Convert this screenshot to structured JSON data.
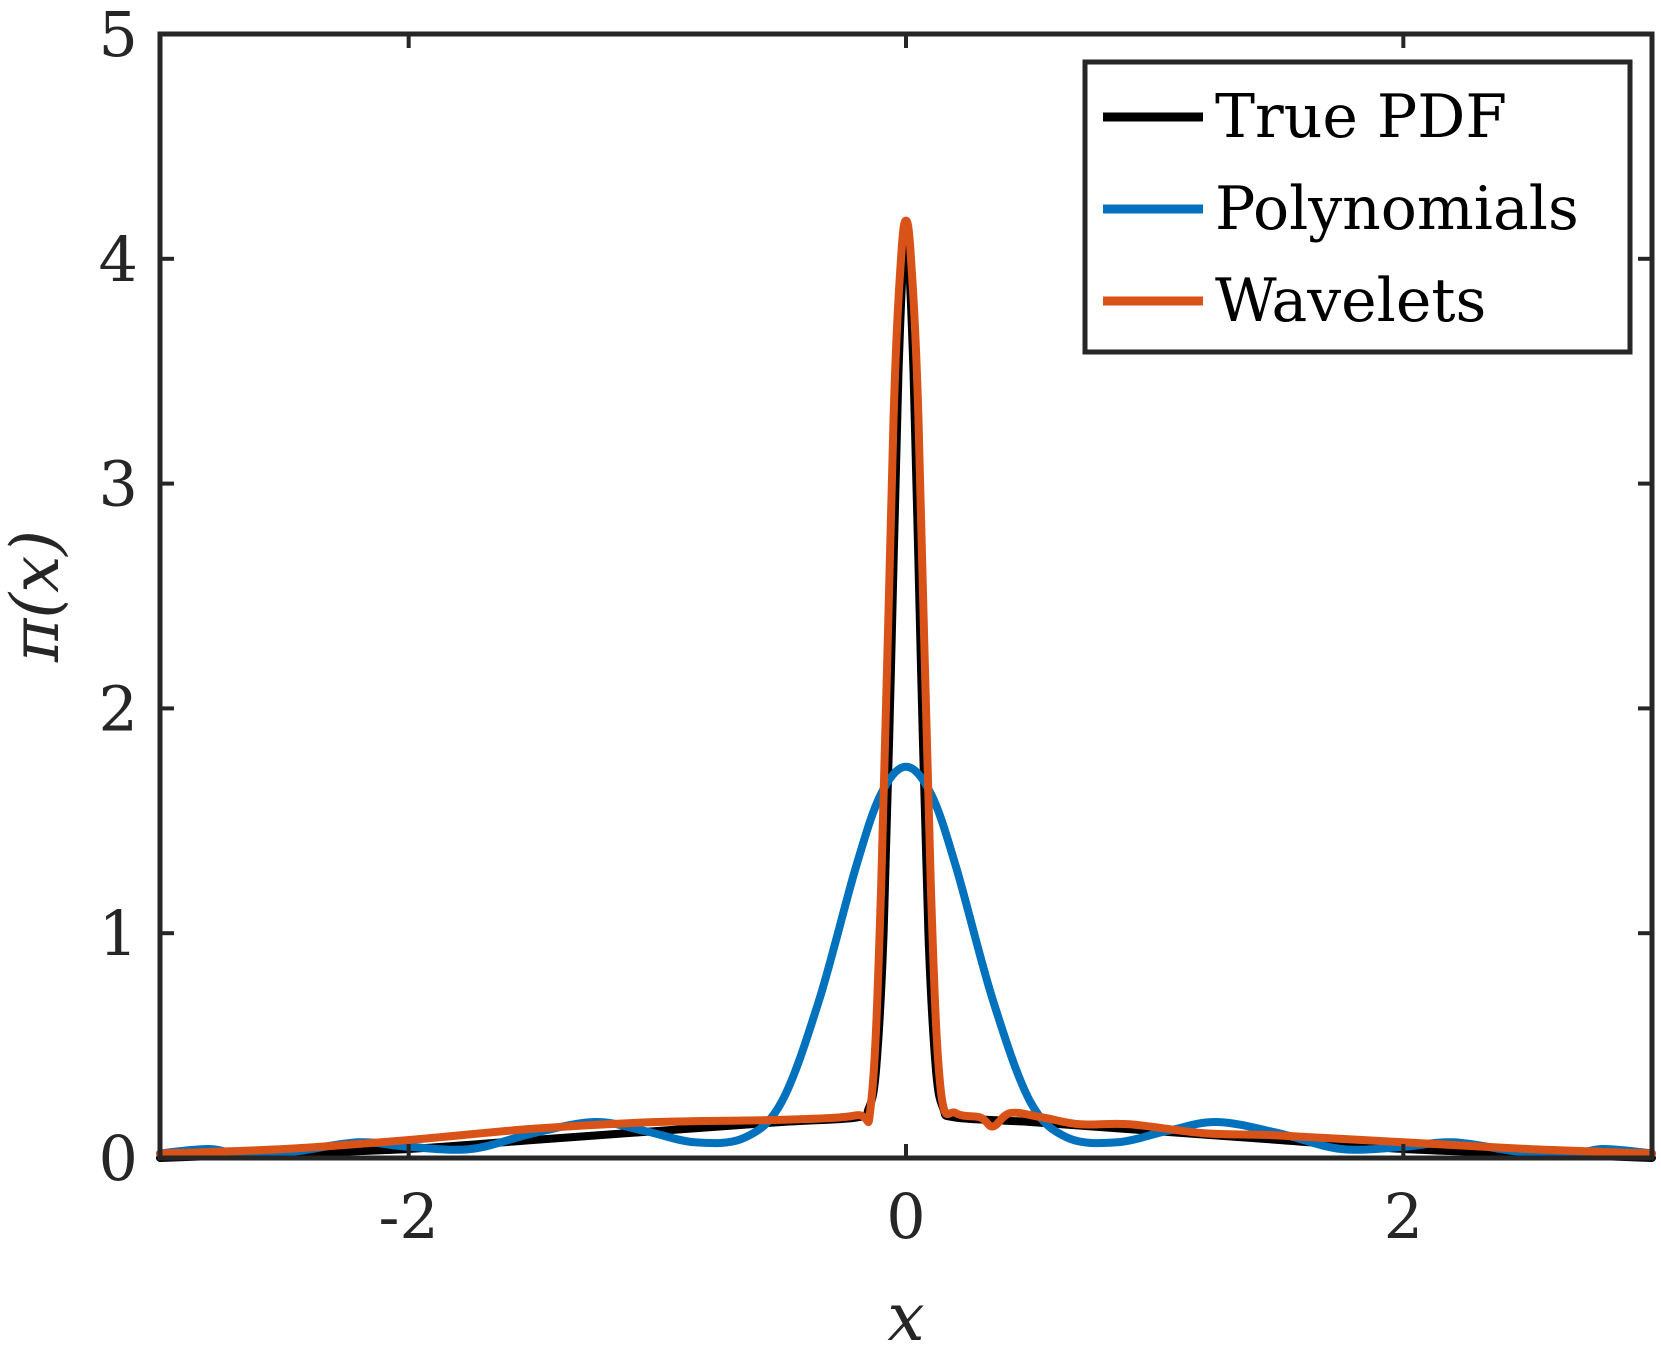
{
  "chart_data": {
    "type": "line",
    "title": "",
    "xlabel": "x",
    "ylabel": "π(x)",
    "xlim": [
      -3,
      3
    ],
    "ylim": [
      0,
      5
    ],
    "xticks": [
      -2,
      0,
      2
    ],
    "xtick_labels": [
      "-2",
      "0",
      "2"
    ],
    "yticks": [
      0,
      1,
      2,
      3,
      4,
      5
    ],
    "ytick_labels": [
      "0",
      "1",
      "2",
      "3",
      "4",
      "5"
    ],
    "grid": false,
    "legend_position": "top-right",
    "series": [
      {
        "name": "True PDF",
        "color": "#000000",
        "x": [
          -3,
          -2.5,
          -2,
          -1.5,
          -1,
          -0.5,
          -0.2,
          -0.15,
          -0.12,
          -0.09,
          -0.06,
          -0.03,
          0,
          0.03,
          0.06,
          0.09,
          0.12,
          0.15,
          0.2,
          0.5,
          1,
          1.5,
          2,
          2.5,
          3
        ],
        "y": [
          0,
          0.02,
          0.04,
          0.08,
          0.12,
          0.16,
          0.18,
          0.22,
          0.4,
          1.0,
          2.2,
          3.5,
          4.1,
          3.5,
          2.2,
          1.0,
          0.4,
          0.22,
          0.18,
          0.16,
          0.12,
          0.08,
          0.04,
          0.02,
          0
        ]
      },
      {
        "name": "Polynomials",
        "color": "#0072BD",
        "x": [
          -3,
          -2.8,
          -2.65,
          -2.45,
          -2.2,
          -2,
          -1.75,
          -1.5,
          -1.25,
          -1.05,
          -0.85,
          -0.65,
          -0.5,
          -0.35,
          -0.2,
          -0.1,
          0,
          0.1,
          0.2,
          0.35,
          0.5,
          0.65,
          0.85,
          1.05,
          1.25,
          1.5,
          1.75,
          2,
          2.2,
          2.45,
          2.65,
          2.8,
          3
        ],
        "y": [
          0.02,
          0.04,
          0.01,
          0.03,
          0.07,
          0.05,
          0.04,
          0.11,
          0.16,
          0.12,
          0.07,
          0.09,
          0.25,
          0.7,
          1.3,
          1.62,
          1.74,
          1.62,
          1.3,
          0.7,
          0.25,
          0.09,
          0.07,
          0.12,
          0.16,
          0.11,
          0.04,
          0.05,
          0.07,
          0.03,
          0.01,
          0.04,
          0.02
        ]
      },
      {
        "name": "Wavelets",
        "color": "#D95319",
        "x": [
          -3,
          -2.5,
          -2,
          -1.5,
          -1,
          -0.5,
          -0.2,
          -0.14,
          -0.1,
          -0.05,
          -0.02,
          0,
          0.02,
          0.05,
          0.1,
          0.14,
          0.2,
          0.3,
          0.35,
          0.42,
          0.55,
          0.7,
          0.9,
          1.2,
          1.5,
          2,
          2.5,
          3
        ],
        "y": [
          0.02,
          0.04,
          0.08,
          0.13,
          0.16,
          0.17,
          0.19,
          0.25,
          1.2,
          3.3,
          4.0,
          4.17,
          4.0,
          3.3,
          1.2,
          0.3,
          0.2,
          0.18,
          0.14,
          0.2,
          0.18,
          0.15,
          0.15,
          0.11,
          0.1,
          0.07,
          0.04,
          0.02
        ]
      }
    ]
  }
}
